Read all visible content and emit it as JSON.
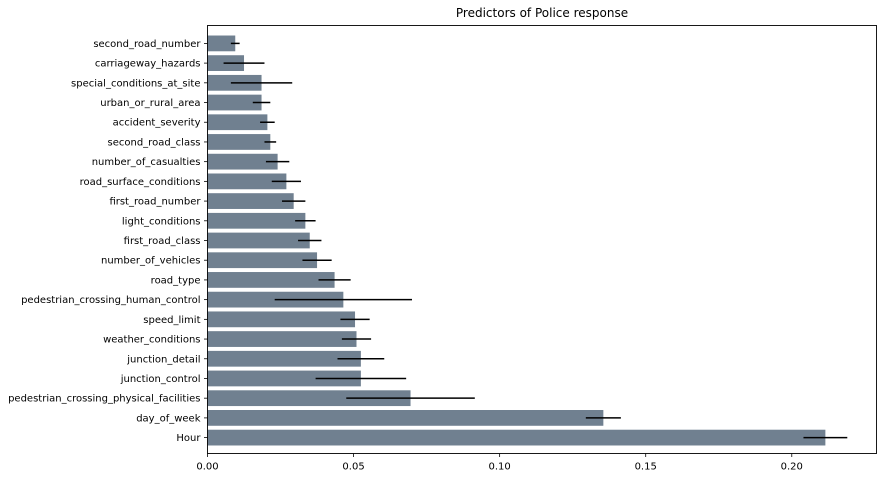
{
  "chart_data": {
    "type": "bar",
    "orientation": "horizontal",
    "title": "Predictors of Police response",
    "xlabel": "",
    "ylabel": "",
    "xlim": [
      0,
      0.229
    ],
    "xticks": [
      "0.00",
      "0.05",
      "0.10",
      "0.15",
      "0.20"
    ],
    "grid": false,
    "bar_color": "#708090",
    "categories": [
      "second_road_number",
      "carriageway_hazards",
      "special_conditions_at_site",
      "urban_or_rural_area",
      "accident_severity",
      "second_road_class",
      "number_of_casualties",
      "road_surface_conditions",
      "first_road_number",
      "light_conditions",
      "first_road_class",
      "number_of_vehicles",
      "road_type",
      "pedestrian_crossing_human_control",
      "speed_limit",
      "weather_conditions",
      "junction_detail",
      "junction_control",
      "pedestrian_crossing_physical_facilities",
      "day_of_week",
      "Hour"
    ],
    "values": [
      0.0095,
      0.0125,
      0.0185,
      0.0185,
      0.0205,
      0.0215,
      0.024,
      0.027,
      0.0295,
      0.0335,
      0.035,
      0.0375,
      0.0435,
      0.0465,
      0.0505,
      0.051,
      0.0525,
      0.0525,
      0.0695,
      0.1355,
      0.2115
    ],
    "errors": [
      0.0015,
      0.007,
      0.0105,
      0.003,
      0.0025,
      0.002,
      0.004,
      0.005,
      0.004,
      0.0035,
      0.004,
      0.005,
      0.0055,
      0.0235,
      0.005,
      0.005,
      0.008,
      0.0155,
      0.022,
      0.006,
      0.0075
    ]
  }
}
